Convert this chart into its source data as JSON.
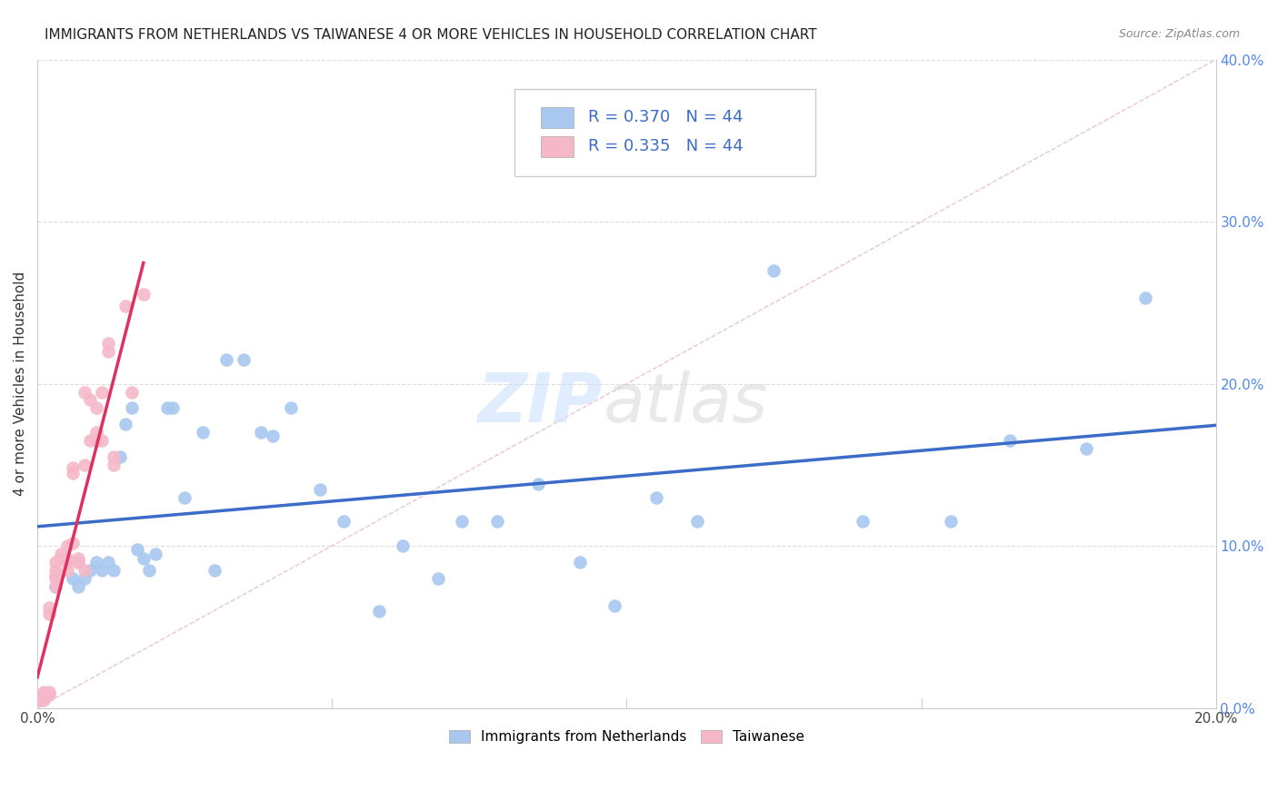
{
  "title": "IMMIGRANTS FROM NETHERLANDS VS TAIWANESE 4 OR MORE VEHICLES IN HOUSEHOLD CORRELATION CHART",
  "source": "Source: ZipAtlas.com",
  "ylabel": "4 or more Vehicles in Household",
  "xlim": [
    0.0,
    0.2
  ],
  "ylim": [
    0.0,
    0.4
  ],
  "xticks": [
    0.0,
    0.05,
    0.1,
    0.15,
    0.2
  ],
  "yticks": [
    0.0,
    0.1,
    0.2,
    0.3,
    0.4
  ],
  "legend_labels": [
    "Immigrants from Netherlands",
    "Taiwanese"
  ],
  "legend_r": [
    0.37,
    0.335
  ],
  "legend_n": [
    44,
    44
  ],
  "blue_color": "#A8C8F0",
  "pink_color": "#F5B8C8",
  "blue_line_color": "#3B6CC8",
  "pink_line_color": "#E03060",
  "diag_color": "#E8A0B0",
  "blue_x": [
    0.003,
    0.006,
    0.007,
    0.008,
    0.009,
    0.01,
    0.011,
    0.012,
    0.013,
    0.014,
    0.015,
    0.016,
    0.017,
    0.018,
    0.019,
    0.02,
    0.022,
    0.023,
    0.025,
    0.028,
    0.03,
    0.032,
    0.035,
    0.038,
    0.04,
    0.043,
    0.048,
    0.052,
    0.058,
    0.062,
    0.068,
    0.072,
    0.078,
    0.085,
    0.092,
    0.098,
    0.105,
    0.112,
    0.125,
    0.14,
    0.155,
    0.165,
    0.178,
    0.188
  ],
  "blue_y": [
    0.075,
    0.08,
    0.075,
    0.08,
    0.085,
    0.09,
    0.085,
    0.09,
    0.085,
    0.155,
    0.175,
    0.185,
    0.098,
    0.092,
    0.085,
    0.095,
    0.185,
    0.185,
    0.13,
    0.17,
    0.085,
    0.215,
    0.215,
    0.17,
    0.168,
    0.185,
    0.135,
    0.115,
    0.06,
    0.1,
    0.08,
    0.115,
    0.115,
    0.138,
    0.09,
    0.063,
    0.13,
    0.115,
    0.27,
    0.115,
    0.115,
    0.165,
    0.16,
    0.253
  ],
  "pink_x": [
    0.0005,
    0.0005,
    0.001,
    0.001,
    0.001,
    0.001,
    0.002,
    0.002,
    0.002,
    0.002,
    0.003,
    0.003,
    0.003,
    0.003,
    0.003,
    0.004,
    0.004,
    0.005,
    0.005,
    0.005,
    0.005,
    0.006,
    0.006,
    0.006,
    0.007,
    0.007,
    0.007,
    0.008,
    0.008,
    0.008,
    0.009,
    0.009,
    0.01,
    0.01,
    0.01,
    0.011,
    0.011,
    0.012,
    0.012,
    0.013,
    0.013,
    0.015,
    0.016,
    0.018
  ],
  "pink_y": [
    0.005,
    0.005,
    0.005,
    0.007,
    0.008,
    0.01,
    0.008,
    0.01,
    0.058,
    0.062,
    0.075,
    0.08,
    0.082,
    0.085,
    0.09,
    0.092,
    0.095,
    0.085,
    0.09,
    0.092,
    0.1,
    0.102,
    0.145,
    0.148,
    0.09,
    0.09,
    0.092,
    0.085,
    0.15,
    0.195,
    0.165,
    0.19,
    0.165,
    0.17,
    0.185,
    0.165,
    0.195,
    0.22,
    0.225,
    0.15,
    0.155,
    0.248,
    0.195,
    0.255
  ]
}
